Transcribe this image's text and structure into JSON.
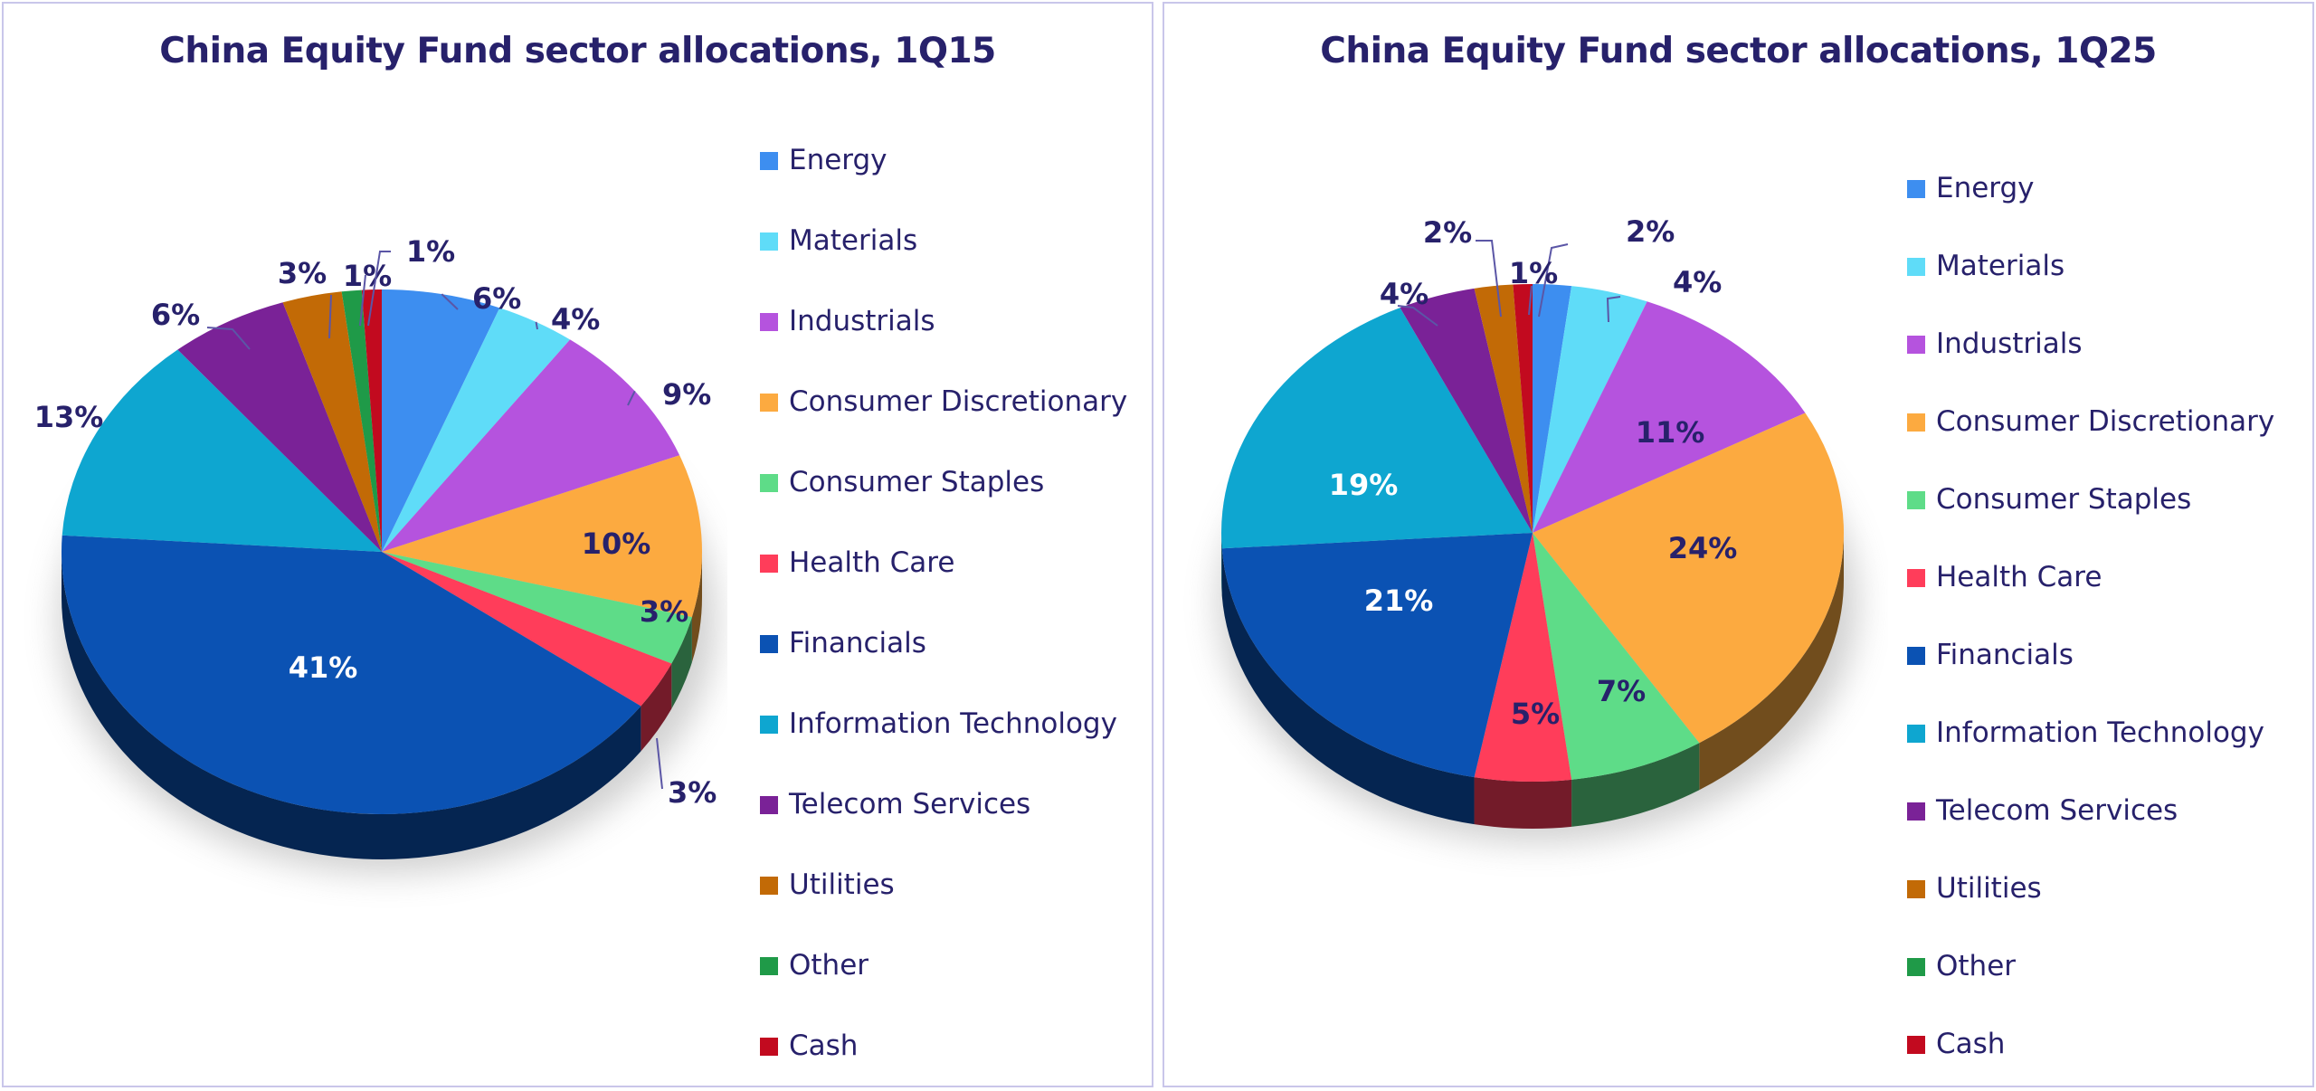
{
  "chart_data": [
    {
      "type": "pie",
      "title": "China Equity Fund sector allocations, 1Q15",
      "categories": [
        "Energy",
        "Materials",
        "Industrials",
        "Consumer Discretionary",
        "Consumer Staples",
        "Health Care",
        "Financials",
        "Information Technology",
        "Telecom Services",
        "Utilities",
        "Other",
        "Cash"
      ],
      "values": [
        6,
        4,
        9,
        10,
        3,
        3,
        41,
        13,
        6,
        3,
        1,
        1
      ],
      "data_labels": [
        "6%",
        "4%",
        "9%",
        "10%",
        "3%",
        "3%",
        "41%",
        "13%",
        "6%",
        "3%",
        "1%",
        "1%"
      ],
      "legend": "right",
      "style": "3d"
    },
    {
      "type": "pie",
      "title": "China Equity Fund sector allocations, 1Q25",
      "categories": [
        "Energy",
        "Materials",
        "Industrials",
        "Consumer Discretionary",
        "Consumer Staples",
        "Health Care",
        "Financials",
        "Information Technology",
        "Telecom Services",
        "Utilities",
        "Other",
        "Cash"
      ],
      "values": [
        2,
        4,
        11,
        24,
        7,
        5,
        21,
        19,
        4,
        2,
        0,
        1
      ],
      "data_labels": [
        "2%",
        "4%",
        "11%",
        "24%",
        "7%",
        "5%",
        "21%",
        "19%",
        "4%",
        "2%",
        "",
        "1%"
      ],
      "legend": "right",
      "style": "3d"
    }
  ],
  "colors": {
    "Energy": "#3d8ef0",
    "Materials": "#5fdcf8",
    "Industrials": "#b553de",
    "Consumer Discretionary": "#fcaa40",
    "Consumer Staples": "#5edc88",
    "Health Care": "#ff3d5a",
    "Financials": "#0b52b3",
    "Information Technology": "#0ea6d0",
    "Telecom Services": "#7a2297",
    "Utilities": "#c26a06",
    "Other": "#1f9a48",
    "Cash": "#c20a1f",
    "text": "#27216b",
    "panel_border": "#c9c6ea"
  }
}
